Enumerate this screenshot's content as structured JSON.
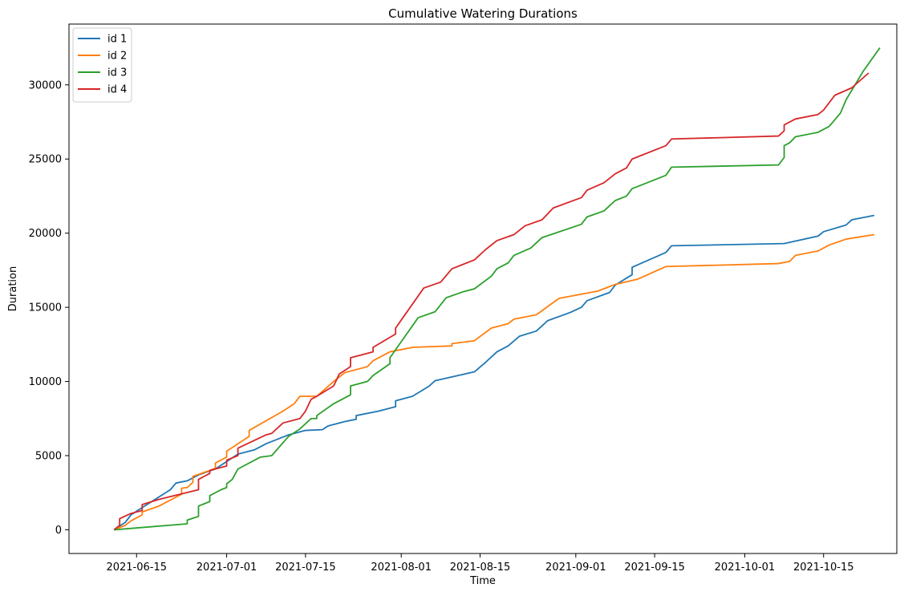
{
  "chart_data": {
    "type": "line",
    "title": "Cumulative Watering Durations",
    "xlabel": "Time",
    "ylabel": "Duration",
    "x_ticks": [
      "2021-06-15",
      "2021-07-01",
      "2021-07-15",
      "2021-08-01",
      "2021-08-15",
      "2021-09-01",
      "2021-09-15",
      "2021-10-01",
      "2021-10-15"
    ],
    "y_ticks": [
      0,
      5000,
      10000,
      15000,
      20000,
      25000,
      30000
    ],
    "xlim": [
      "2021-06-03",
      "2021-10-28"
    ],
    "ylim": [
      -1600,
      34100
    ],
    "legend_position": "top-left",
    "grid": false,
    "series": [
      {
        "name": "id 1",
        "color": "#1f77b4",
        "points": [
          [
            "2021-06-11",
            0
          ],
          [
            "2021-06-13",
            500
          ],
          [
            "2021-06-14",
            1000
          ],
          [
            "2021-06-16",
            1500
          ],
          [
            "2021-06-21",
            2700
          ],
          [
            "2021-06-22",
            3150
          ],
          [
            "2021-06-24",
            3300
          ],
          [
            "2021-06-26",
            3700
          ],
          [
            "2021-06-29",
            4100
          ],
          [
            "2021-07-01",
            4600
          ],
          [
            "2021-07-03",
            5100
          ],
          [
            "2021-07-06",
            5400
          ],
          [
            "2021-07-08",
            5800
          ],
          [
            "2021-07-12",
            6400
          ],
          [
            "2021-07-15",
            6700
          ],
          [
            "2021-07-18",
            6750
          ],
          [
            "2021-07-19",
            7000
          ],
          [
            "2021-07-22",
            7300
          ],
          [
            "2021-07-24",
            7450
          ],
          [
            "2021-07-24",
            7700
          ],
          [
            "2021-07-28",
            8000
          ],
          [
            "2021-07-31",
            8300
          ],
          [
            "2021-07-31",
            8700
          ],
          [
            "2021-08-03",
            9000
          ],
          [
            "2021-08-06",
            9700
          ],
          [
            "2021-08-07",
            10050
          ],
          [
            "2021-08-14",
            10650
          ],
          [
            "2021-08-16",
            11300
          ],
          [
            "2021-08-18",
            12000
          ],
          [
            "2021-08-20",
            12400
          ],
          [
            "2021-08-22",
            13050
          ],
          [
            "2021-08-25",
            13400
          ],
          [
            "2021-08-27",
            14100
          ],
          [
            "2021-08-31",
            14650
          ],
          [
            "2021-09-02",
            15000
          ],
          [
            "2021-09-03",
            15450
          ],
          [
            "2021-09-07",
            16000
          ],
          [
            "2021-09-08",
            16500
          ],
          [
            "2021-09-11",
            17200
          ],
          [
            "2021-09-11",
            17700
          ],
          [
            "2021-09-14",
            18200
          ],
          [
            "2021-09-17",
            18700
          ],
          [
            "2021-09-18",
            19150
          ],
          [
            "2021-10-08",
            19300
          ],
          [
            "2021-10-14",
            19800
          ],
          [
            "2021-10-15",
            20100
          ],
          [
            "2021-10-19",
            20550
          ],
          [
            "2021-10-20",
            20900
          ],
          [
            "2021-10-24",
            21200
          ]
        ]
      },
      {
        "name": "id 2",
        "color": "#ff7f0e",
        "points": [
          [
            "2021-06-11",
            0
          ],
          [
            "2021-06-13",
            300
          ],
          [
            "2021-06-14",
            600
          ],
          [
            "2021-06-16",
            1000
          ],
          [
            "2021-06-16",
            1200
          ],
          [
            "2021-06-19",
            1600
          ],
          [
            "2021-06-23",
            2400
          ],
          [
            "2021-06-23",
            2800
          ],
          [
            "2021-06-24",
            2850
          ],
          [
            "2021-06-25",
            3200
          ],
          [
            "2021-06-25",
            3600
          ],
          [
            "2021-06-28",
            4000
          ],
          [
            "2021-06-29",
            4150
          ],
          [
            "2021-06-29",
            4500
          ],
          [
            "2021-07-01",
            4900
          ],
          [
            "2021-07-01",
            5300
          ],
          [
            "2021-07-05",
            6300
          ],
          [
            "2021-07-05",
            6700
          ],
          [
            "2021-07-11",
            8000
          ],
          [
            "2021-07-13",
            8500
          ],
          [
            "2021-07-14",
            9000
          ],
          [
            "2021-07-17",
            9000
          ],
          [
            "2021-07-20",
            10000
          ],
          [
            "2021-07-22",
            10600
          ],
          [
            "2021-07-26",
            11000
          ],
          [
            "2021-07-27",
            11400
          ],
          [
            "2021-07-30",
            12000
          ],
          [
            "2021-08-03",
            12300
          ],
          [
            "2021-08-10",
            12400
          ],
          [
            "2021-08-10",
            12550
          ],
          [
            "2021-08-14",
            12750
          ],
          [
            "2021-08-17",
            13600
          ],
          [
            "2021-08-20",
            13900
          ],
          [
            "2021-08-21",
            14200
          ],
          [
            "2021-08-25",
            14500
          ],
          [
            "2021-08-29",
            15600
          ],
          [
            "2021-09-05",
            16100
          ],
          [
            "2021-09-08",
            16550
          ],
          [
            "2021-09-12",
            16900
          ],
          [
            "2021-09-17",
            17750
          ],
          [
            "2021-10-07",
            17950
          ],
          [
            "2021-10-09",
            18100
          ],
          [
            "2021-10-10",
            18500
          ],
          [
            "2021-10-14",
            18800
          ],
          [
            "2021-10-16",
            19200
          ],
          [
            "2021-10-19",
            19600
          ],
          [
            "2021-10-24",
            19900
          ]
        ]
      },
      {
        "name": "id 3",
        "color": "#2ca02c",
        "points": [
          [
            "2021-06-11",
            0
          ],
          [
            "2021-06-24",
            400
          ],
          [
            "2021-06-24",
            650
          ],
          [
            "2021-06-26",
            900
          ],
          [
            "2021-06-26",
            1600
          ],
          [
            "2021-06-28",
            1900
          ],
          [
            "2021-06-28",
            2300
          ],
          [
            "2021-06-30",
            2700
          ],
          [
            "2021-07-01",
            2850
          ],
          [
            "2021-07-01",
            3100
          ],
          [
            "2021-07-02",
            3400
          ],
          [
            "2021-07-03",
            4100
          ],
          [
            "2021-07-07",
            4900
          ],
          [
            "2021-07-09",
            5000
          ],
          [
            "2021-07-12",
            6300
          ],
          [
            "2021-07-14",
            6800
          ],
          [
            "2021-07-16",
            7500
          ],
          [
            "2021-07-17",
            7500
          ],
          [
            "2021-07-17",
            7700
          ],
          [
            "2021-07-20",
            8500
          ],
          [
            "2021-07-23",
            9100
          ],
          [
            "2021-07-23",
            9700
          ],
          [
            "2021-07-26",
            10000
          ],
          [
            "2021-07-27",
            10400
          ],
          [
            "2021-07-30",
            11200
          ],
          [
            "2021-07-30",
            11600
          ],
          [
            "2021-08-04",
            14300
          ],
          [
            "2021-08-07",
            14700
          ],
          [
            "2021-08-09",
            15650
          ],
          [
            "2021-08-12",
            16050
          ],
          [
            "2021-08-14",
            16250
          ],
          [
            "2021-08-17",
            17100
          ],
          [
            "2021-08-18",
            17600
          ],
          [
            "2021-08-20",
            18000
          ],
          [
            "2021-08-21",
            18500
          ],
          [
            "2021-08-24",
            19000
          ],
          [
            "2021-08-26",
            19700
          ],
          [
            "2021-09-02",
            20600
          ],
          [
            "2021-09-03",
            21100
          ],
          [
            "2021-09-06",
            21500
          ],
          [
            "2021-09-08",
            22200
          ],
          [
            "2021-09-10",
            22500
          ],
          [
            "2021-09-11",
            23000
          ],
          [
            "2021-09-17",
            23900
          ],
          [
            "2021-09-18",
            24450
          ],
          [
            "2021-10-07",
            24600
          ],
          [
            "2021-10-08",
            25100
          ],
          [
            "2021-10-08",
            25900
          ],
          [
            "2021-10-09",
            26100
          ],
          [
            "2021-10-10",
            26500
          ],
          [
            "2021-10-14",
            26800
          ],
          [
            "2021-10-16",
            27200
          ],
          [
            "2021-10-18",
            28100
          ],
          [
            "2021-10-19",
            29000
          ],
          [
            "2021-10-22",
            30900
          ],
          [
            "2021-10-25",
            32500
          ]
        ]
      },
      {
        "name": "id 4",
        "color": "#d62728",
        "points": [
          [
            "2021-06-11",
            0
          ],
          [
            "2021-06-12",
            300
          ],
          [
            "2021-06-12",
            750
          ],
          [
            "2021-06-14",
            1100
          ],
          [
            "2021-06-16",
            1300
          ],
          [
            "2021-06-16",
            1700
          ],
          [
            "2021-06-19",
            2050
          ],
          [
            "2021-06-26",
            2700
          ],
          [
            "2021-06-26",
            3400
          ],
          [
            "2021-06-28",
            3800
          ],
          [
            "2021-06-28",
            4000
          ],
          [
            "2021-07-01",
            4300
          ],
          [
            "2021-07-01",
            4700
          ],
          [
            "2021-07-03",
            5000
          ],
          [
            "2021-07-03",
            5500
          ],
          [
            "2021-07-08",
            6400
          ],
          [
            "2021-07-09",
            6500
          ],
          [
            "2021-07-11",
            7200
          ],
          [
            "2021-07-14",
            7500
          ],
          [
            "2021-07-15",
            8000
          ],
          [
            "2021-07-16",
            8800
          ],
          [
            "2021-07-17",
            9000
          ],
          [
            "2021-07-20",
            9700
          ],
          [
            "2021-07-21",
            10500
          ],
          [
            "2021-07-23",
            11000
          ],
          [
            "2021-07-23",
            11600
          ],
          [
            "2021-07-27",
            12000
          ],
          [
            "2021-07-27",
            12300
          ],
          [
            "2021-07-31",
            13200
          ],
          [
            "2021-07-31",
            13600
          ],
          [
            "2021-08-05",
            16300
          ],
          [
            "2021-08-08",
            16700
          ],
          [
            "2021-08-10",
            17600
          ],
          [
            "2021-08-12",
            17900
          ],
          [
            "2021-08-14",
            18200
          ],
          [
            "2021-08-16",
            18900
          ],
          [
            "2021-08-18",
            19500
          ],
          [
            "2021-08-21",
            19900
          ],
          [
            "2021-08-23",
            20500
          ],
          [
            "2021-08-26",
            20900
          ],
          [
            "2021-08-28",
            21700
          ],
          [
            "2021-09-02",
            22400
          ],
          [
            "2021-09-03",
            22900
          ],
          [
            "2021-09-06",
            23400
          ],
          [
            "2021-09-08",
            24000
          ],
          [
            "2021-09-10",
            24400
          ],
          [
            "2021-09-11",
            25000
          ],
          [
            "2021-09-17",
            25900
          ],
          [
            "2021-09-18",
            26350
          ],
          [
            "2021-10-07",
            26550
          ],
          [
            "2021-10-08",
            26900
          ],
          [
            "2021-10-08",
            27300
          ],
          [
            "2021-10-10",
            27700
          ],
          [
            "2021-10-14",
            28000
          ],
          [
            "2021-10-15",
            28300
          ],
          [
            "2021-10-17",
            29300
          ],
          [
            "2021-10-20",
            29800
          ],
          [
            "2021-10-23",
            30800
          ]
        ]
      }
    ]
  }
}
